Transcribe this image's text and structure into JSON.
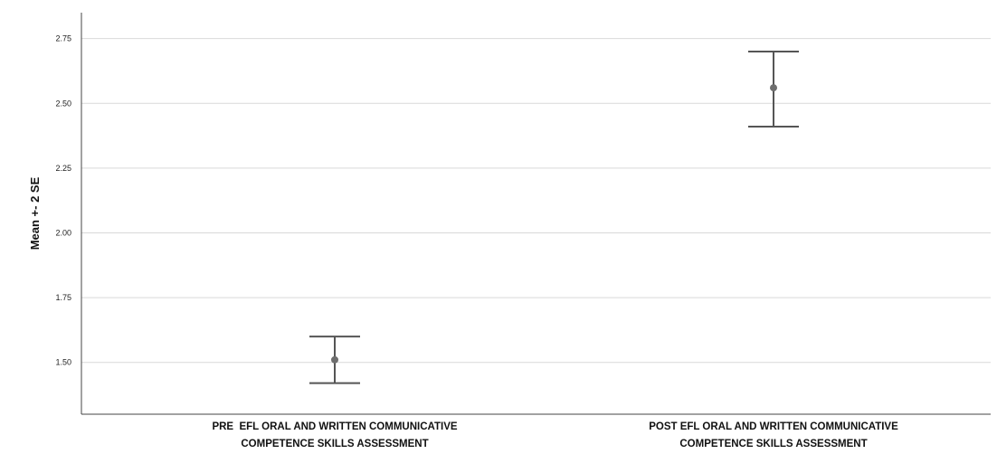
{
  "chart_data": {
    "type": "errorbar",
    "title": "",
    "xlabel": "",
    "ylabel": "Mean +- 2 SE",
    "ylim": [
      1.3,
      2.85
    ],
    "yticks": [
      "1.50",
      "1.75",
      "2.00",
      "2.25",
      "2.50",
      "2.75"
    ],
    "ytick_values": [
      1.5,
      1.75,
      2.0,
      2.25,
      2.5,
      2.75
    ],
    "grid": true,
    "categories": [
      {
        "line1": "PRE  EFL ORAL AND WRITTEN COMMUNICATIVE",
        "line2": "COMPETENCE SKILLS ASSESSMENT"
      },
      {
        "line1": "POST EFL ORAL AND WRITTEN COMMUNICATIVE",
        "line2": "COMPETENCE SKILLS ASSESSMENT"
      }
    ],
    "points": [
      {
        "mean": 1.51,
        "lower": 1.42,
        "upper": 1.6
      },
      {
        "mean": 2.56,
        "lower": 2.41,
        "upper": 2.7
      }
    ],
    "colors": {
      "marker": "#6e6e6e",
      "errorbar": "#555555",
      "grid": "#d9d9d9",
      "axis": "#444444"
    }
  }
}
